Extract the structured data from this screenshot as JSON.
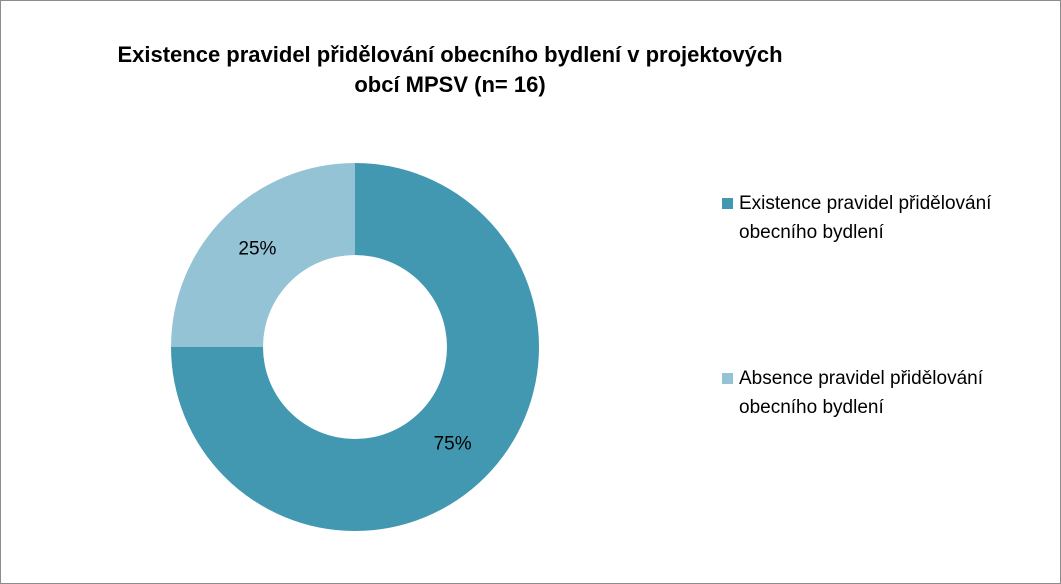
{
  "chart_data": {
    "type": "pie",
    "title": "Existence pravidel přidělování obecního bydlení v projektových obcí MPSV (n= 16)",
    "categories": [
      "Existence pravidel přidělování obecního bydlení",
      "Absence pravidel přidělování obecního bydlení"
    ],
    "values": [
      75,
      25
    ],
    "value_labels": [
      "75%",
      "25%"
    ],
    "colors": [
      "#4198b0",
      "#93c3d5"
    ],
    "donut": true,
    "legend": "right"
  }
}
